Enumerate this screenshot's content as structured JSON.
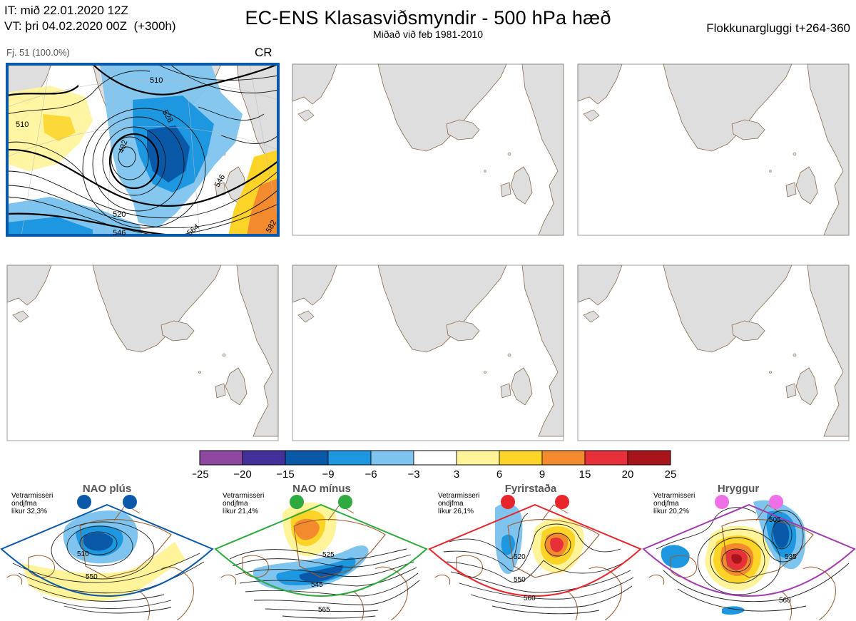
{
  "header": {
    "it_line": "IT: mið 22.01.2020 12Z",
    "vt_line": "VT: þri 04.02.2020 00Z  (+300h)",
    "title": "EC-ENS Klasasviðsmyndir - 500 hPa hæð",
    "subtitle": "Miðað við feb 1981-2010",
    "window": "Flokkunargluggi t+264-360"
  },
  "cluster_panel": {
    "caption": "Fj. 51 (100.0%)",
    "regime_code": "CR",
    "contour_labels": [
      "510",
      "492",
      "528",
      "510",
      "520",
      "546",
      "546",
      "564",
      "582"
    ]
  },
  "colors": {
    "frame_blue": "#0a58a8",
    "land": "#dedede",
    "coast": "#8b6a4a",
    "nao_plus": "#0a58a8",
    "nao_minus": "#2eaa3e",
    "blocking": "#e8252b",
    "ridge": "#a23bb0"
  },
  "chart_data": {
    "type": "heatmap",
    "colorbar": {
      "ticks": [
        "−25",
        "−20",
        "−15",
        "−9",
        "−6",
        "−3",
        "3",
        "6",
        "9",
        "15",
        "20",
        "25"
      ],
      "bins": [
        {
          "from": -25,
          "to": -20,
          "color": "#8f48a0"
        },
        {
          "from": -20,
          "to": -15,
          "color": "#44309a"
        },
        {
          "from": -15,
          "to": -9,
          "color": "#0a58a8"
        },
        {
          "from": -9,
          "to": -6,
          "color": "#1c97e0"
        },
        {
          "from": -6,
          "to": -3,
          "color": "#7ec4ee"
        },
        {
          "from": -3,
          "to": 3,
          "color": "#ffffff"
        },
        {
          "from": 3,
          "to": 6,
          "color": "#fff49a"
        },
        {
          "from": 6,
          "to": 9,
          "color": "#fcd327"
        },
        {
          "from": 9,
          "to": 15,
          "color": "#f48a2e"
        },
        {
          "from": 15,
          "to": 20,
          "color": "#e8303a"
        },
        {
          "from": 20,
          "to": 25,
          "color": "#a8141c"
        }
      ]
    },
    "regimes": [
      {
        "name": "NAO plús",
        "season": "Vetrarmisseri",
        "word": "ondjfma",
        "likelihood": "líkur 32,3%",
        "labels": [
          "510",
          "550"
        ]
      },
      {
        "name": "NAO mínus",
        "season": "Vetrarmisseri",
        "word": "ondjfma",
        "likelihood": "líkur 21,4%",
        "labels": [
          "525",
          "545",
          "565"
        ]
      },
      {
        "name": "Fyrirstaða",
        "season": "Vetrarmisseri",
        "word": "ondjfma",
        "likelihood": "líkur 26,1%",
        "labels": [
          "520",
          "550",
          "560"
        ]
      },
      {
        "name": "Hryggur",
        "season": "Vetrarmisseri",
        "word": "ondjfma",
        "likelihood": "líkur 20,2%",
        "labels": [
          "505",
          "535",
          "560"
        ]
      }
    ]
  }
}
